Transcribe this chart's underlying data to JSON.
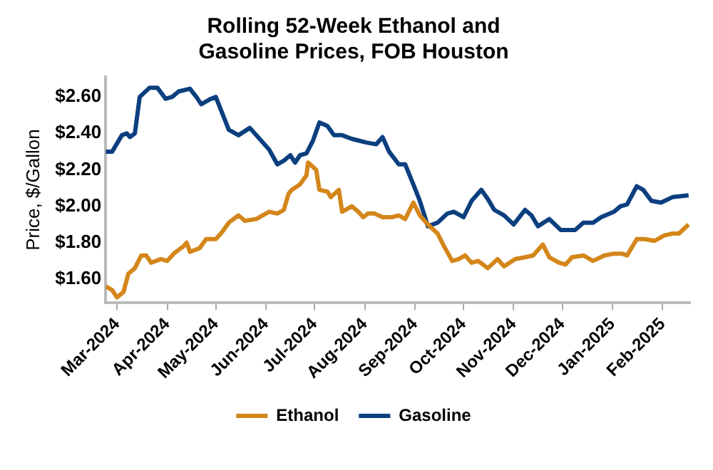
{
  "chart_data": {
    "type": "line",
    "title": "Rolling 52-Week Ethanol and Gasoline Prices, FOB Houston",
    "ylabel": "Price, $/Gallon",
    "xlim": [
      "2024-02-23",
      "2025-02-18"
    ],
    "xticks": [
      {
        "value": "2024-03-01",
        "label": "Mar-2024"
      },
      {
        "value": "2024-04-01",
        "label": "Apr-2024"
      },
      {
        "value": "2024-05-01",
        "label": "May-2024"
      },
      {
        "value": "2024-06-01",
        "label": "Jun-2024"
      },
      {
        "value": "2024-07-01",
        "label": "Jul-2024"
      },
      {
        "value": "2024-08-01",
        "label": "Aug-2024"
      },
      {
        "value": "2024-09-01",
        "label": "Sep-2024"
      },
      {
        "value": "2024-10-01",
        "label": "Oct-2024"
      },
      {
        "value": "2024-11-01",
        "label": "Nov-2024"
      },
      {
        "value": "2024-12-01",
        "label": "Dec-2024"
      },
      {
        "value": "2025-01-01",
        "label": "Jan-2025"
      },
      {
        "value": "2025-02-01",
        "label": "Feb-2025"
      }
    ],
    "ylim": [
      1.47,
      2.71
    ],
    "yticks": [
      {
        "value": 1.6,
        "label": "$1.60"
      },
      {
        "value": 1.8,
        "label": "$1.80"
      },
      {
        "value": 2.0,
        "label": "$2.00"
      },
      {
        "value": 2.2,
        "label": "$2.20"
      },
      {
        "value": 2.4,
        "label": "$2.40"
      },
      {
        "value": 2.6,
        "label": "$2.60"
      }
    ],
    "grid": false,
    "legend": "bottom",
    "marker": "none",
    "line_style": "solid",
    "series": [
      {
        "name": "Ethanol",
        "color": "#d4861a",
        "x": [
          "2024-02-23",
          "2024-02-27",
          "2024-03-01",
          "2024-03-05",
          "2024-03-08",
          "2024-03-12",
          "2024-03-16",
          "2024-03-19",
          "2024-03-22",
          "2024-03-28",
          "2024-04-01",
          "2024-04-05",
          "2024-04-11",
          "2024-04-13",
          "2024-04-15",
          "2024-04-21",
          "2024-04-25",
          "2024-05-01",
          "2024-05-05",
          "2024-05-09",
          "2024-05-15",
          "2024-05-19",
          "2024-05-26",
          "2024-05-30",
          "2024-06-03",
          "2024-06-08",
          "2024-06-12",
          "2024-06-15",
          "2024-06-17",
          "2024-06-22",
          "2024-06-26",
          "2024-06-27",
          "2024-07-02",
          "2024-07-04",
          "2024-07-09",
          "2024-07-11",
          "2024-07-16",
          "2024-07-18",
          "2024-07-24",
          "2024-07-28",
          "2024-07-31",
          "2024-08-03",
          "2024-08-07",
          "2024-08-12",
          "2024-08-18",
          "2024-08-22",
          "2024-08-26",
          "2024-08-31",
          "2024-09-04",
          "2024-09-09",
          "2024-09-15",
          "2024-09-19",
          "2024-09-24",
          "2024-09-28",
          "2024-10-02",
          "2024-10-06",
          "2024-10-10",
          "2024-10-16",
          "2024-10-22",
          "2024-10-26",
          "2024-11-02",
          "2024-11-08",
          "2024-11-13",
          "2024-11-19",
          "2024-11-23",
          "2024-11-29",
          "2024-12-03",
          "2024-12-07",
          "2024-12-14",
          "2024-12-20",
          "2024-12-27",
          "2025-01-02",
          "2025-01-07",
          "2025-01-10",
          "2025-01-16",
          "2025-01-21",
          "2025-01-27",
          "2025-02-02",
          "2025-02-07",
          "2025-02-11",
          "2025-02-17"
        ],
        "values": [
          1.56,
          1.54,
          1.5,
          1.53,
          1.63,
          1.66,
          1.73,
          1.73,
          1.69,
          1.71,
          1.7,
          1.74,
          1.78,
          1.8,
          1.75,
          1.77,
          1.82,
          1.82,
          1.86,
          1.91,
          1.95,
          1.92,
          1.93,
          1.95,
          1.97,
          1.96,
          1.98,
          2.07,
          2.09,
          2.12,
          2.17,
          2.24,
          2.2,
          2.09,
          2.08,
          2.05,
          2.09,
          1.97,
          2.0,
          1.97,
          1.94,
          1.96,
          1.96,
          1.94,
          1.94,
          1.95,
          1.93,
          2.02,
          1.95,
          1.9,
          1.85,
          1.78,
          1.7,
          1.71,
          1.73,
          1.69,
          1.7,
          1.66,
          1.71,
          1.67,
          1.71,
          1.72,
          1.73,
          1.79,
          1.72,
          1.69,
          1.68,
          1.72,
          1.73,
          1.7,
          1.73,
          1.74,
          1.74,
          1.73,
          1.82,
          1.82,
          1.81,
          1.84,
          1.85,
          1.85,
          1.9
        ]
      },
      {
        "name": "Gasoline",
        "color": "#0b3f7f",
        "x": [
          "2024-02-23",
          "2024-02-27",
          "2024-03-04",
          "2024-03-07",
          "2024-03-09",
          "2024-03-12",
          "2024-03-15",
          "2024-03-21",
          "2024-03-26",
          "2024-03-31",
          "2024-04-04",
          "2024-04-08",
          "2024-04-15",
          "2024-04-19",
          "2024-04-22",
          "2024-04-28",
          "2024-05-01",
          "2024-05-05",
          "2024-05-09",
          "2024-05-15",
          "2024-05-22",
          "2024-05-26",
          "2024-05-30",
          "2024-06-03",
          "2024-06-08",
          "2024-06-12",
          "2024-06-16",
          "2024-06-19",
          "2024-06-22",
          "2024-06-26",
          "2024-06-30",
          "2024-07-04",
          "2024-07-09",
          "2024-07-13",
          "2024-07-18",
          "2024-07-24",
          "2024-08-02",
          "2024-08-08",
          "2024-08-12",
          "2024-08-16",
          "2024-08-22",
          "2024-08-26",
          "2024-08-31",
          "2024-09-04",
          "2024-09-09",
          "2024-09-15",
          "2024-09-21",
          "2024-09-25",
          "2024-10-01",
          "2024-10-06",
          "2024-10-12",
          "2024-10-16",
          "2024-10-20",
          "2024-10-26",
          "2024-11-01",
          "2024-11-08",
          "2024-11-12",
          "2024-11-16",
          "2024-11-23",
          "2024-11-30",
          "2024-12-09",
          "2024-12-14",
          "2024-12-20",
          "2024-12-25",
          "2025-01-02",
          "2025-01-06",
          "2025-01-10",
          "2025-01-16",
          "2025-01-20",
          "2025-01-25",
          "2025-01-31",
          "2025-02-07",
          "2025-02-17"
        ],
        "values": [
          2.3,
          2.3,
          2.39,
          2.4,
          2.38,
          2.4,
          2.6,
          2.65,
          2.65,
          2.59,
          2.6,
          2.63,
          2.645,
          2.6,
          2.56,
          2.59,
          2.6,
          2.51,
          2.42,
          2.39,
          2.43,
          2.39,
          2.35,
          2.31,
          2.23,
          2.25,
          2.28,
          2.24,
          2.28,
          2.29,
          2.36,
          2.46,
          2.44,
          2.39,
          2.39,
          2.37,
          2.35,
          2.34,
          2.38,
          2.3,
          2.23,
          2.23,
          2.12,
          2.03,
          1.89,
          1.91,
          1.96,
          1.97,
          1.94,
          2.03,
          2.09,
          2.04,
          1.98,
          1.95,
          1.9,
          1.98,
          1.95,
          1.89,
          1.93,
          1.87,
          1.87,
          1.91,
          1.91,
          1.94,
          1.97,
          2.0,
          2.01,
          2.11,
          2.09,
          2.03,
          2.02,
          2.05,
          2.06
        ]
      }
    ]
  }
}
